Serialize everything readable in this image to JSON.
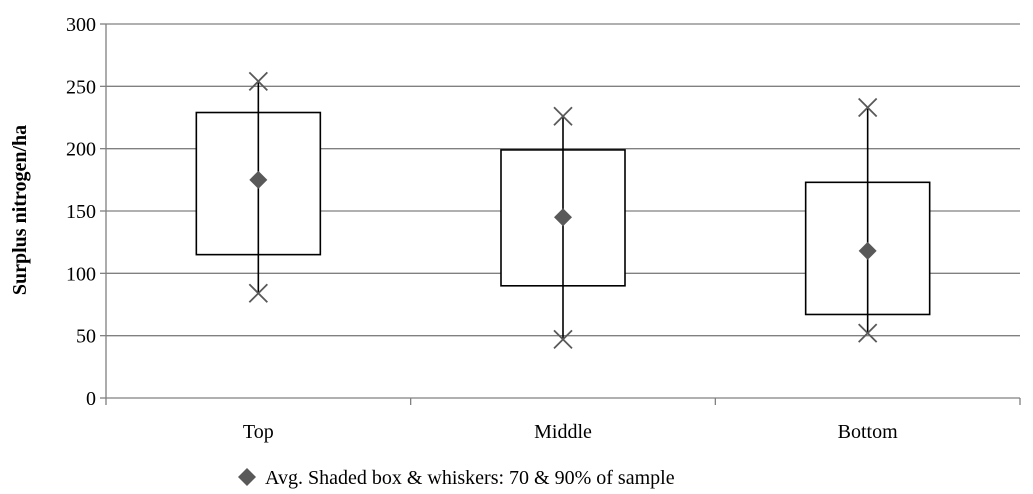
{
  "chart_data": {
    "type": "box",
    "categories": [
      "Top",
      "Middle",
      "Bottom"
    ],
    "ylabel": "Surplus nitrogen/ha",
    "ylim": [
      0,
      300
    ],
    "yticks": [
      0,
      50,
      100,
      150,
      200,
      250,
      300
    ],
    "grid": "horizontal",
    "series": [
      {
        "avg": [
          175,
          145,
          118
        ],
        "box_low": [
          115,
          90,
          67
        ],
        "box_high": [
          229,
          199,
          173
        ],
        "whisker_low": [
          84,
          47,
          52
        ],
        "whisker_high": [
          254,
          226,
          233
        ]
      }
    ],
    "legend": {
      "placement": "bottom-center",
      "text": "Avg. Shaded box & whiskers: 70 & 90% of sample"
    }
  }
}
